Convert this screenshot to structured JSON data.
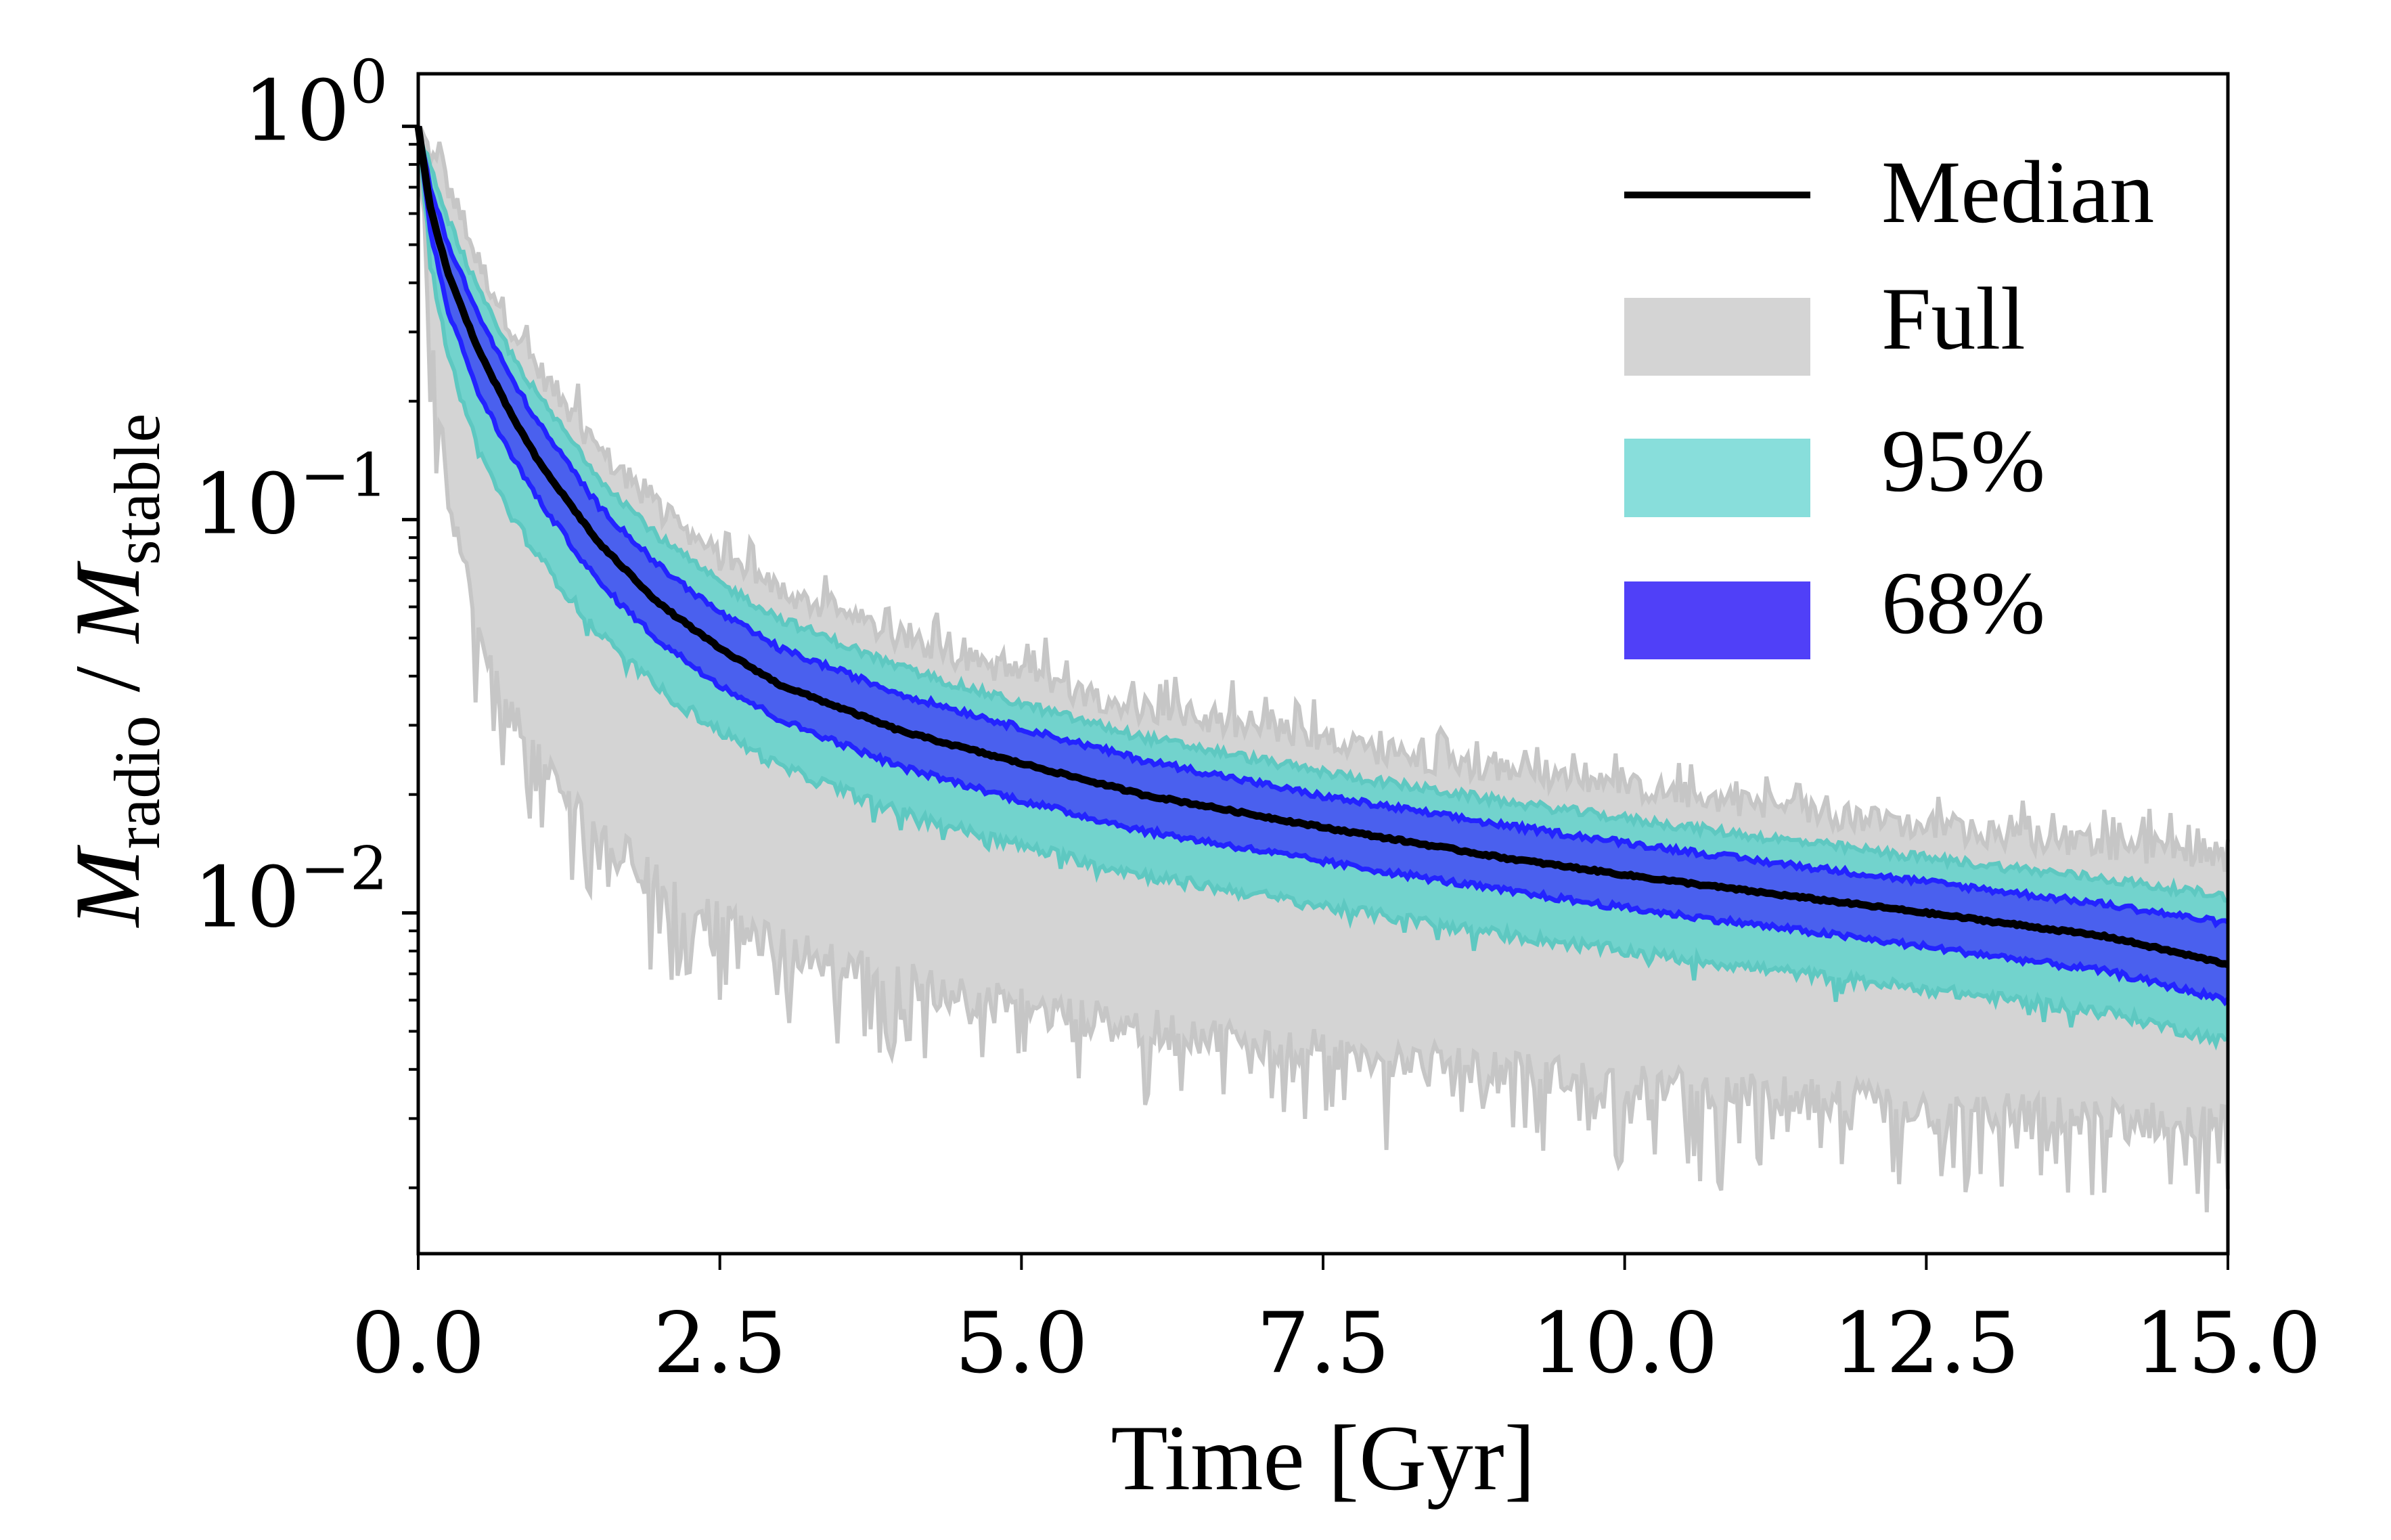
{
  "chart_data": {
    "type": "area",
    "title": "",
    "xlabel": "Time [Gyr]",
    "ylabel": {
      "main": "M",
      "sub1": "radio",
      "sep": " / ",
      "main2": "M",
      "sub2": "stable"
    },
    "xlim": [
      0.0,
      15.0
    ],
    "ylim": [
      0.00136,
      1.36
    ],
    "yscale": "log",
    "grid": false,
    "x_ticks": [
      "0.0",
      "2.5",
      "5.0",
      "7.5",
      "10.0",
      "12.5",
      "15.0"
    ],
    "x_tick_values": [
      0,
      2.5,
      5,
      7.5,
      10,
      12.5,
      15
    ],
    "y_ticks": [
      {
        "value": 1,
        "base": "10",
        "exp": "0"
      },
      {
        "value": 0.1,
        "base": "10",
        "exp": "−1"
      },
      {
        "value": 0.01,
        "base": "10",
        "exp": "−2"
      }
    ],
    "legend_position": "top-right",
    "x": [
      0,
      0.1,
      0.25,
      0.5,
      0.75,
      1.0,
      1.5,
      2.0,
      2.5,
      3.0,
      4.0,
      5.0,
      6.0,
      7.5,
      9.0,
      10.0,
      11.0,
      12.5,
      14.0,
      15.0
    ],
    "series": [
      {
        "name": "Median",
        "kind": "line",
        "color": "#000000",
        "values": [
          1.0,
          0.62,
          0.42,
          0.27,
          0.19,
          0.14,
          0.087,
          0.061,
          0.047,
          0.038,
          0.029,
          0.024,
          0.02,
          0.0165,
          0.0138,
          0.0125,
          0.0114,
          0.01,
          0.0087,
          0.0074
        ]
      },
      {
        "name": "Full",
        "kind": "band",
        "color": "#d4d4d4",
        "edge_color": "#c6c6c6",
        "upper": [
          1.0,
          0.85,
          0.7,
          0.45,
          0.32,
          0.24,
          0.15,
          0.105,
          0.08,
          0.066,
          0.05,
          0.04,
          0.033,
          0.027,
          0.023,
          0.021,
          0.019,
          0.0165,
          0.0148,
          0.0135
        ],
        "lower": [
          1.0,
          0.3,
          0.12,
          0.05,
          0.033,
          0.024,
          0.016,
          0.012,
          0.0095,
          0.0082,
          0.0068,
          0.0058,
          0.0051,
          0.0045,
          0.004,
          0.0037,
          0.0035,
          0.0032,
          0.003,
          0.0029
        ]
      },
      {
        "name": "95%",
        "kind": "band",
        "color": "#72d3cd",
        "edge_color": "#5ec8c1",
        "upper": [
          1.0,
          0.78,
          0.58,
          0.38,
          0.27,
          0.205,
          0.128,
          0.09,
          0.069,
          0.056,
          0.042,
          0.034,
          0.028,
          0.0228,
          0.0192,
          0.0174,
          0.0158,
          0.0138,
          0.0122,
          0.011
        ],
        "lower": [
          1.0,
          0.45,
          0.26,
          0.15,
          0.105,
          0.08,
          0.051,
          0.037,
          0.029,
          0.0235,
          0.018,
          0.0148,
          0.0125,
          0.0104,
          0.0088,
          0.008,
          0.0073,
          0.0064,
          0.0056,
          0.0047
        ]
      },
      {
        "name": "68%",
        "kind": "band",
        "color": "#4a60ee",
        "edge_color": "#2323ff",
        "upper": [
          1.0,
          0.7,
          0.5,
          0.33,
          0.235,
          0.175,
          0.108,
          0.076,
          0.058,
          0.047,
          0.036,
          0.0295,
          0.0245,
          0.0198,
          0.0167,
          0.0151,
          0.0137,
          0.012,
          0.0105,
          0.0094
        ],
        "lower": [
          1.0,
          0.54,
          0.34,
          0.21,
          0.15,
          0.112,
          0.069,
          0.049,
          0.038,
          0.031,
          0.0235,
          0.0193,
          0.0162,
          0.0135,
          0.0114,
          0.0103,
          0.0094,
          0.0082,
          0.0071,
          0.006
        ]
      }
    ],
    "legend": [
      {
        "label": "Median",
        "kind": "line",
        "color": "#000000"
      },
      {
        "label": "Full",
        "kind": "patch",
        "color": "#d4d4d4"
      },
      {
        "label": "95%",
        "kind": "patch",
        "color": "#88dedb"
      },
      {
        "label": "68%",
        "kind": "patch",
        "color": "#5040f8"
      }
    ]
  }
}
